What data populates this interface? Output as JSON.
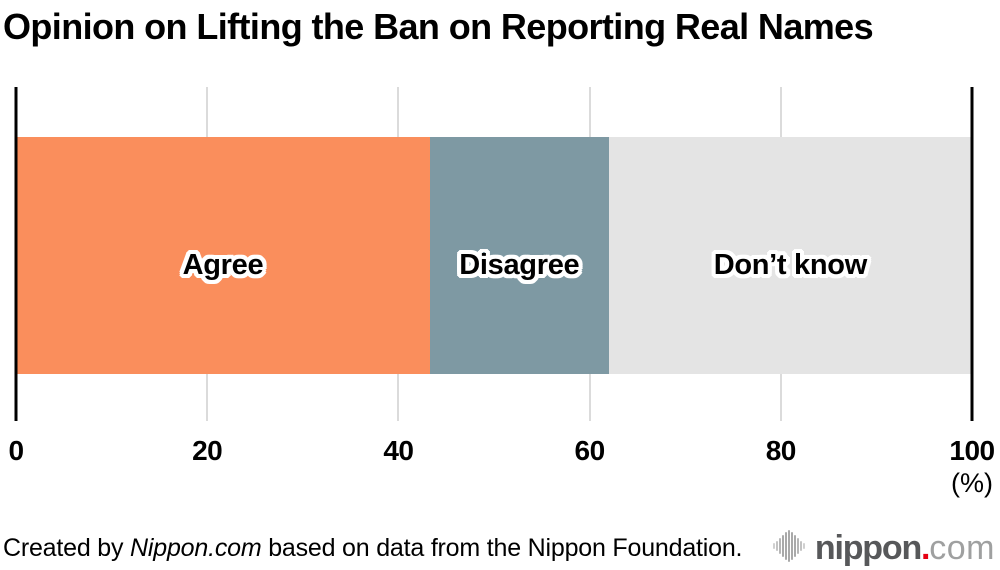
{
  "title": "Opinion on Lifting the Ban on Reporting Real Names",
  "chart_data": {
    "type": "bar",
    "orientation": "horizontal-stacked",
    "categories": [
      "Agree",
      "Disagree",
      "Don’t know"
    ],
    "values": [
      43.3,
      18.7,
      38.0
    ],
    "colors": [
      "#fa8e5c",
      "#7e99a3",
      "#e4e4e4"
    ],
    "title": "Opinion on Lifting the Ban on Reporting Real Names",
    "xlabel": "(%)",
    "ylabel": "",
    "axis": {
      "min": 0,
      "max": 100,
      "ticks": [
        0,
        20,
        40,
        60,
        80,
        100
      ],
      "unit_label": "(%)",
      "major_tick_color": "#000000",
      "minor_tick_color": "#dbdbdb"
    },
    "grid": true,
    "legend": "labels-inside-bar"
  },
  "footer": {
    "credit_prefix": "Created by ",
    "credit_source": "Nippon.com",
    "credit_suffix": " based on data from the Nippon Foundation.",
    "logo": {
      "icon": "soundwave-icon",
      "name_bold": "nippon",
      "dot": ".",
      "name_light": "com",
      "brand_gray": "#57585a",
      "brand_red": "#e60012",
      "brand_light_gray": "#9fa0a0"
    }
  }
}
